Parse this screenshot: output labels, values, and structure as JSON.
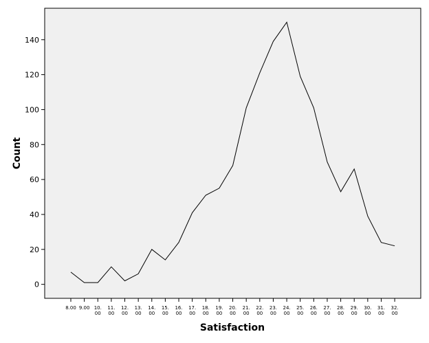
{
  "chart_data": {
    "type": "line",
    "xlabel": "Satisfaction",
    "ylabel": "Count",
    "ylim": [
      -8,
      158
    ],
    "yticks": [
      0,
      20,
      40,
      60,
      80,
      100,
      120,
      140
    ],
    "grid": false,
    "legend": "none",
    "categories": [
      [
        "8.00"
      ],
      [
        "9.00"
      ],
      [
        "10.",
        "00"
      ],
      [
        "11.",
        "00"
      ],
      [
        "12.",
        "00"
      ],
      [
        "13.",
        "00"
      ],
      [
        "14.",
        "00"
      ],
      [
        "15.",
        "00"
      ],
      [
        "16.",
        "00"
      ],
      [
        "17.",
        "00"
      ],
      [
        "18.",
        "00"
      ],
      [
        "19.",
        "00"
      ],
      [
        "20.",
        "00"
      ],
      [
        "21.",
        "00"
      ],
      [
        "22.",
        "00"
      ],
      [
        "23.",
        "00"
      ],
      [
        "24.",
        "00"
      ],
      [
        "25.",
        "00"
      ],
      [
        "26.",
        "00"
      ],
      [
        "27.",
        "00"
      ],
      [
        "28.",
        "00"
      ],
      [
        "29.",
        "00"
      ],
      [
        "30.",
        "00"
      ],
      [
        "31.",
        "00"
      ],
      [
        "32.",
        "00"
      ]
    ],
    "x": [
      8,
      9,
      10,
      11,
      12,
      13,
      14,
      15,
      16,
      17,
      18,
      19,
      20,
      21,
      22,
      23,
      24,
      25,
      26,
      27,
      28,
      29,
      30,
      31,
      32
    ],
    "values": [
      7,
      1,
      1,
      10,
      2,
      6,
      20,
      14,
      24,
      41,
      51,
      55,
      68,
      101,
      121,
      139,
      150,
      119,
      101,
      70,
      53,
      66,
      39,
      24,
      22
    ],
    "colors": {
      "plot_background": "#f0f0f0",
      "line": "#000000",
      "axis": "#000000"
    }
  }
}
